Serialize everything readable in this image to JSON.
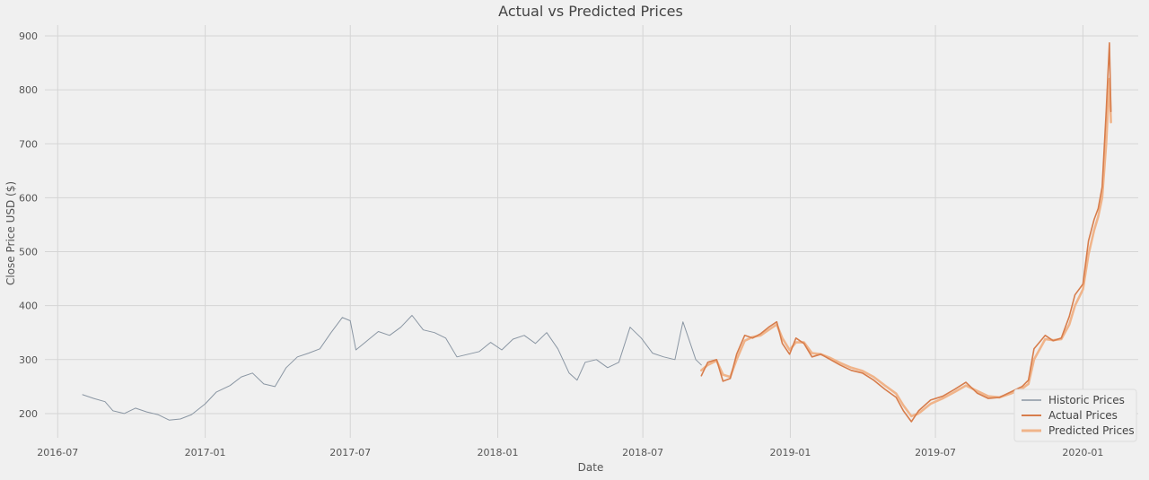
{
  "chart_data": {
    "type": "line",
    "title": "Actual vs Predicted Prices",
    "xlabel": "Date",
    "ylabel": "Close Price USD ($)",
    "x_ticks": [
      "2016-07",
      "2017-01",
      "2017-07",
      "2018-01",
      "2018-07",
      "2019-01",
      "2019-07",
      "2020-01"
    ],
    "y_ticks": [
      200,
      300,
      400,
      500,
      600,
      700,
      800,
      900
    ],
    "xlim": [
      "2016-06-15",
      "2020-03-10"
    ],
    "ylim": [
      155,
      920
    ],
    "grid": true,
    "legend_position": "bottom-right",
    "series": [
      {
        "name": "Historic Prices",
        "color": "#8a96a3",
        "points": [
          [
            "2016-08-01",
            235
          ],
          [
            "2016-08-15",
            228
          ],
          [
            "2016-08-29",
            222
          ],
          [
            "2016-09-08",
            205
          ],
          [
            "2016-09-22",
            200
          ],
          [
            "2016-10-06",
            210
          ],
          [
            "2016-10-20",
            203
          ],
          [
            "2016-11-03",
            198
          ],
          [
            "2016-11-17",
            188
          ],
          [
            "2016-12-01",
            190
          ],
          [
            "2016-12-15",
            198
          ],
          [
            "2017-01-01",
            218
          ],
          [
            "2017-01-15",
            240
          ],
          [
            "2017-02-01",
            252
          ],
          [
            "2017-02-15",
            268
          ],
          [
            "2017-03-01",
            275
          ],
          [
            "2017-03-15",
            255
          ],
          [
            "2017-03-29",
            250
          ],
          [
            "2017-04-12",
            285
          ],
          [
            "2017-04-26",
            305
          ],
          [
            "2017-05-10",
            312
          ],
          [
            "2017-05-24",
            320
          ],
          [
            "2017-06-07",
            350
          ],
          [
            "2017-06-21",
            378
          ],
          [
            "2017-07-01",
            372
          ],
          [
            "2017-07-08",
            318
          ],
          [
            "2017-07-22",
            335
          ],
          [
            "2017-08-05",
            352
          ],
          [
            "2017-08-19",
            345
          ],
          [
            "2017-09-02",
            360
          ],
          [
            "2017-09-16",
            382
          ],
          [
            "2017-09-30",
            355
          ],
          [
            "2017-10-14",
            350
          ],
          [
            "2017-10-28",
            340
          ],
          [
            "2017-11-11",
            305
          ],
          [
            "2017-11-25",
            310
          ],
          [
            "2017-12-09",
            315
          ],
          [
            "2017-12-23",
            332
          ],
          [
            "2018-01-06",
            318
          ],
          [
            "2018-01-20",
            338
          ],
          [
            "2018-02-03",
            345
          ],
          [
            "2018-02-17",
            330
          ],
          [
            "2018-03-03",
            350
          ],
          [
            "2018-03-17",
            320
          ],
          [
            "2018-03-31",
            275
          ],
          [
            "2018-04-10",
            262
          ],
          [
            "2018-04-20",
            295
          ],
          [
            "2018-05-04",
            300
          ],
          [
            "2018-05-18",
            285
          ],
          [
            "2018-06-01",
            295
          ],
          [
            "2018-06-15",
            360
          ],
          [
            "2018-06-29",
            340
          ],
          [
            "2018-07-13",
            312
          ],
          [
            "2018-07-27",
            305
          ],
          [
            "2018-08-10",
            300
          ],
          [
            "2018-08-20",
            370
          ],
          [
            "2018-08-27",
            340
          ],
          [
            "2018-09-05",
            300
          ],
          [
            "2018-09-12",
            290
          ]
        ]
      },
      {
        "name": "Actual Prices",
        "color": "#d77d4c",
        "points": [
          [
            "2018-09-12",
            270
          ],
          [
            "2018-09-20",
            295
          ],
          [
            "2018-10-01",
            300
          ],
          [
            "2018-10-09",
            260
          ],
          [
            "2018-10-18",
            265
          ],
          [
            "2018-10-26",
            310
          ],
          [
            "2018-11-05",
            345
          ],
          [
            "2018-11-15",
            340
          ],
          [
            "2018-11-25",
            348
          ],
          [
            "2018-12-05",
            360
          ],
          [
            "2018-12-15",
            370
          ],
          [
            "2018-12-22",
            330
          ],
          [
            "2018-12-31",
            310
          ],
          [
            "2019-01-08",
            340
          ],
          [
            "2019-01-18",
            330
          ],
          [
            "2019-01-28",
            305
          ],
          [
            "2019-02-08",
            310
          ],
          [
            "2019-02-20",
            300
          ],
          [
            "2019-03-04",
            290
          ],
          [
            "2019-03-18",
            280
          ],
          [
            "2019-04-01",
            275
          ],
          [
            "2019-04-15",
            262
          ],
          [
            "2019-04-29",
            245
          ],
          [
            "2019-05-13",
            230
          ],
          [
            "2019-05-22",
            205
          ],
          [
            "2019-06-01",
            185
          ],
          [
            "2019-06-10",
            205
          ],
          [
            "2019-06-25",
            225
          ],
          [
            "2019-07-10",
            232
          ],
          [
            "2019-07-25",
            245
          ],
          [
            "2019-08-08",
            258
          ],
          [
            "2019-08-22",
            238
          ],
          [
            "2019-09-05",
            228
          ],
          [
            "2019-09-19",
            230
          ],
          [
            "2019-10-03",
            240
          ],
          [
            "2019-10-17",
            250
          ],
          [
            "2019-10-25",
            262
          ],
          [
            "2019-11-01",
            320
          ],
          [
            "2019-11-15",
            345
          ],
          [
            "2019-11-25",
            335
          ],
          [
            "2019-12-05",
            340
          ],
          [
            "2019-12-15",
            380
          ],
          [
            "2019-12-22",
            420
          ],
          [
            "2020-01-01",
            440
          ],
          [
            "2020-01-08",
            520
          ],
          [
            "2020-01-15",
            560
          ],
          [
            "2020-01-20",
            580
          ],
          [
            "2020-01-25",
            620
          ],
          [
            "2020-01-30",
            760
          ],
          [
            "2020-02-03",
            887
          ],
          [
            "2020-02-05",
            760
          ]
        ]
      },
      {
        "name": "Predicted Prices",
        "color": "#f0b48a",
        "points": [
          [
            "2018-09-12",
            280
          ],
          [
            "2018-09-20",
            290
          ],
          [
            "2018-10-01",
            298
          ],
          [
            "2018-10-09",
            272
          ],
          [
            "2018-10-18",
            268
          ],
          [
            "2018-10-26",
            300
          ],
          [
            "2018-11-05",
            335
          ],
          [
            "2018-11-15",
            342
          ],
          [
            "2018-11-25",
            345
          ],
          [
            "2018-12-05",
            355
          ],
          [
            "2018-12-15",
            365
          ],
          [
            "2018-12-22",
            340
          ],
          [
            "2018-12-31",
            318
          ],
          [
            "2019-01-08",
            332
          ],
          [
            "2019-01-18",
            332
          ],
          [
            "2019-01-28",
            312
          ],
          [
            "2019-02-08",
            310
          ],
          [
            "2019-02-20",
            303
          ],
          [
            "2019-03-04",
            294
          ],
          [
            "2019-03-18",
            285
          ],
          [
            "2019-04-01",
            279
          ],
          [
            "2019-04-15",
            268
          ],
          [
            "2019-04-29",
            252
          ],
          [
            "2019-05-13",
            237
          ],
          [
            "2019-05-22",
            215
          ],
          [
            "2019-06-01",
            195
          ],
          [
            "2019-06-10",
            200
          ],
          [
            "2019-06-25",
            218
          ],
          [
            "2019-07-10",
            228
          ],
          [
            "2019-07-25",
            240
          ],
          [
            "2019-08-08",
            252
          ],
          [
            "2019-08-22",
            242
          ],
          [
            "2019-09-05",
            232
          ],
          [
            "2019-09-19",
            230
          ],
          [
            "2019-10-03",
            237
          ],
          [
            "2019-10-17",
            246
          ],
          [
            "2019-10-25",
            255
          ],
          [
            "2019-11-01",
            300
          ],
          [
            "2019-11-15",
            338
          ],
          [
            "2019-11-25",
            336
          ],
          [
            "2019-12-05",
            338
          ],
          [
            "2019-12-15",
            365
          ],
          [
            "2019-12-22",
            400
          ],
          [
            "2020-01-01",
            430
          ],
          [
            "2020-01-08",
            495
          ],
          [
            "2020-01-15",
            540
          ],
          [
            "2020-01-20",
            565
          ],
          [
            "2020-01-25",
            600
          ],
          [
            "2020-01-30",
            700
          ],
          [
            "2020-02-03",
            820
          ],
          [
            "2020-02-05",
            740
          ]
        ]
      }
    ]
  }
}
